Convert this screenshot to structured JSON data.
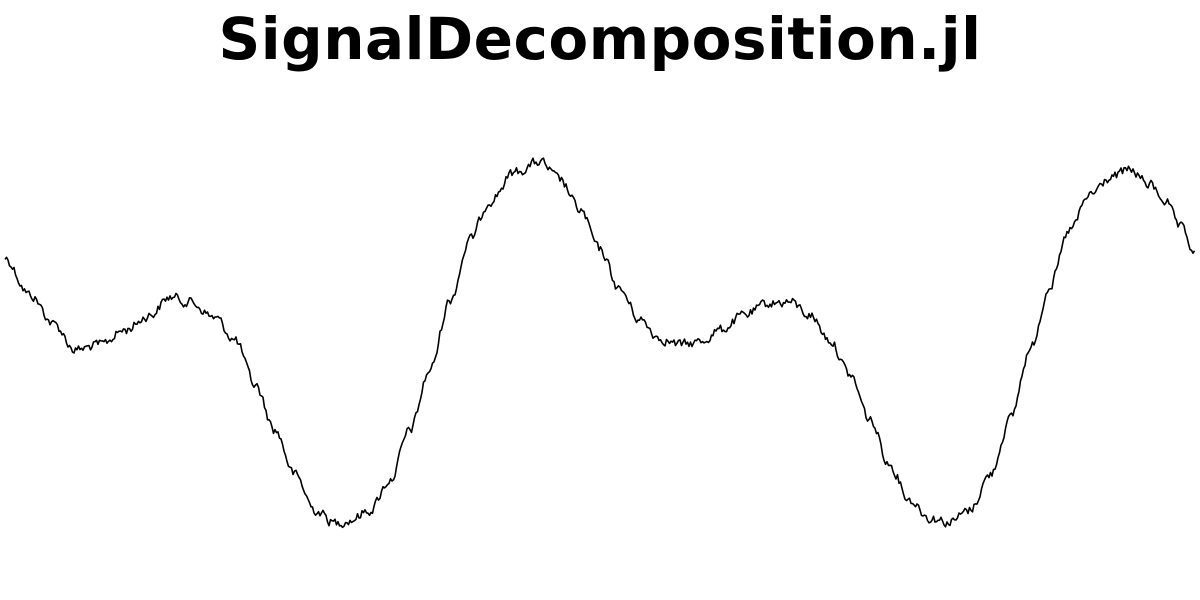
{
  "title": "SignalDecomposition.jl",
  "colors": {
    "background": "#ffffff",
    "signal": "#000000",
    "title": "#000000"
  }
}
